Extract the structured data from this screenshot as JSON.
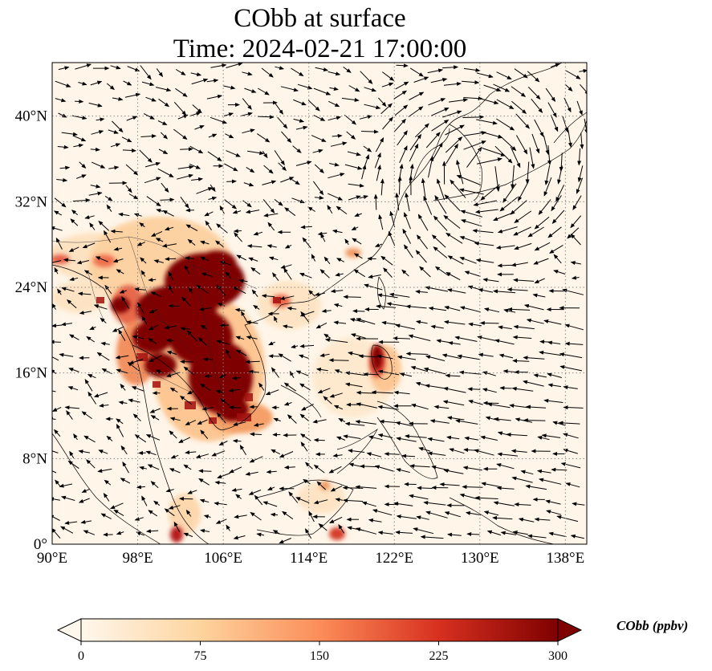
{
  "title_line1": "CObb at surface",
  "title_line2": "Time: 2024-02-21 17:00:00",
  "map": {
    "lon_range": [
      90,
      140
    ],
    "lat_range": [
      0,
      45
    ],
    "lon_ticks": [
      "90°E",
      "98°E",
      "106°E",
      "114°E",
      "122°E",
      "130°E",
      "138°E"
    ],
    "lat_ticks": [
      "0°",
      "8°N",
      "16°N",
      "24°N",
      "32°N",
      "40°N"
    ],
    "gridlines": true,
    "colormap": "OrRd",
    "hotspots": [
      {
        "region": "Indochina / Southern China",
        "lon": 104,
        "lat": 20,
        "level": 300
      },
      {
        "region": "Cambodia",
        "lon": 105,
        "lat": 13,
        "level": 300
      },
      {
        "region": "Luzon",
        "lon": 121,
        "lat": 17,
        "level": 250
      }
    ]
  },
  "colorbar": {
    "label": "CObb (ppbv)",
    "ticks": [
      "0",
      "75",
      "150",
      "225",
      "300"
    ],
    "min": 0,
    "max": 300,
    "extend": "both"
  }
}
